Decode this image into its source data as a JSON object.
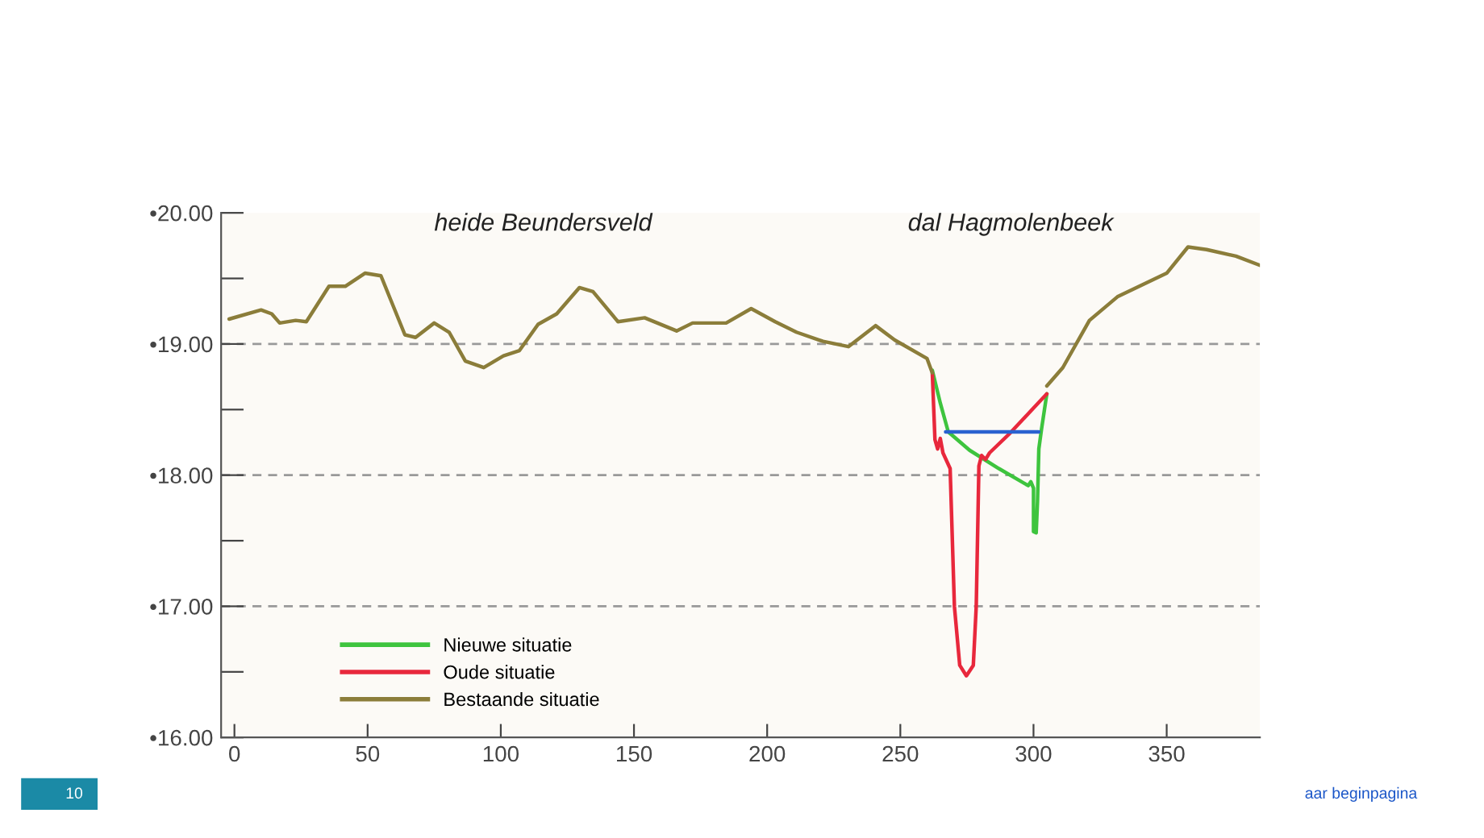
{
  "chart_data": {
    "type": "line",
    "xlim": [
      -5,
      385
    ],
    "ylim": [
      16,
      20
    ],
    "xticks": [
      0,
      50,
      100,
      150,
      200,
      250,
      300,
      350
    ],
    "yticks": [
      {
        "value": 16,
        "label": "•16.00"
      },
      {
        "value": 16.5,
        "label": null
      },
      {
        "value": 17,
        "label": "•17.00"
      },
      {
        "value": 17.5,
        "label": null
      },
      {
        "value": 18,
        "label": "•18.00"
      },
      {
        "value": 18.5,
        "label": null
      },
      {
        "value": 19,
        "label": "•19.00"
      },
      {
        "value": 19.5,
        "label": null
      },
      {
        "value": 20,
        "label": "•20.00"
      }
    ],
    "ref_lines": [
      {
        "axis": "y",
        "value": 17,
        "color": "#999999",
        "line_style": "dashed"
      },
      {
        "axis": "y",
        "value": 18,
        "color": "#999999",
        "line_style": "dashed"
      },
      {
        "axis": "y",
        "value": 19,
        "color": "#999999",
        "line_style": "dashed"
      }
    ],
    "legend": "bottom left",
    "series": [
      {
        "name": "Nieuwe situatie",
        "color": "#3ec43e",
        "x": [
          262,
          265,
          268,
          276,
          287,
          298,
          299,
          300,
          300,
          301,
          301.5,
          302,
          303,
          305
        ],
        "values": [
          18.8,
          18.55,
          18.33,
          18.19,
          18.05,
          17.92,
          17.95,
          17.9,
          17.57,
          17.56,
          17.8,
          18.2,
          18.35,
          18.62
        ]
      },
      {
        "name": "Oude situatie",
        "color": "#e8283c",
        "x": [
          262,
          263,
          264,
          265,
          266,
          268.7,
          270.3,
          272.3,
          274.8,
          277.4,
          278.5,
          279.5,
          280.5,
          282,
          283.5,
          290.7,
          305
        ],
        "values": [
          18.78,
          18.27,
          18.2,
          18.28,
          18.17,
          18.05,
          17.0,
          16.55,
          16.47,
          16.55,
          17.0,
          18.07,
          18.15,
          18.12,
          18.17,
          18.31,
          18.62
        ]
      },
      {
        "name": "Bestaande situatie",
        "color": "#8b7d3a",
        "x": [
          -2,
          10,
          14,
          17,
          23,
          27,
          35.5,
          41.6,
          49,
          55,
          64,
          68,
          75,
          80.6,
          86.7,
          93.6,
          101,
          107,
          114,
          121,
          129.5,
          134.6,
          144,
          154,
          166,
          172,
          184.6,
          194,
          203,
          211,
          221,
          230.5,
          240.7,
          247.9,
          260,
          262,
          283,
          305,
          311,
          321,
          331.5,
          350,
          358,
          365,
          376,
          385
        ],
        "values": [
          19.19,
          19.26,
          19.23,
          19.16,
          19.18,
          19.17,
          19.44,
          19.44,
          19.54,
          19.52,
          19.07,
          19.05,
          19.16,
          19.09,
          18.87,
          18.82,
          18.91,
          18.95,
          19.15,
          19.23,
          19.43,
          19.4,
          19.17,
          19.2,
          19.1,
          19.16,
          19.16,
          19.27,
          19.17,
          19.09,
          19.02,
          18.98,
          19.14,
          19.03,
          18.89,
          18.78,
          null,
          18.68,
          18.82,
          19.18,
          19.36,
          19.54,
          19.74,
          19.72,
          19.67,
          19.6
        ]
      },
      {
        "color": "#2a62d0",
        "x": [
          267,
          302
        ],
        "values": [
          18.33,
          18.33
        ]
      }
    ],
    "annotations": [
      "heide Beundersveld",
      "dal Hagmolenbeek",
      "10",
      "aar beginpagina"
    ]
  }
}
